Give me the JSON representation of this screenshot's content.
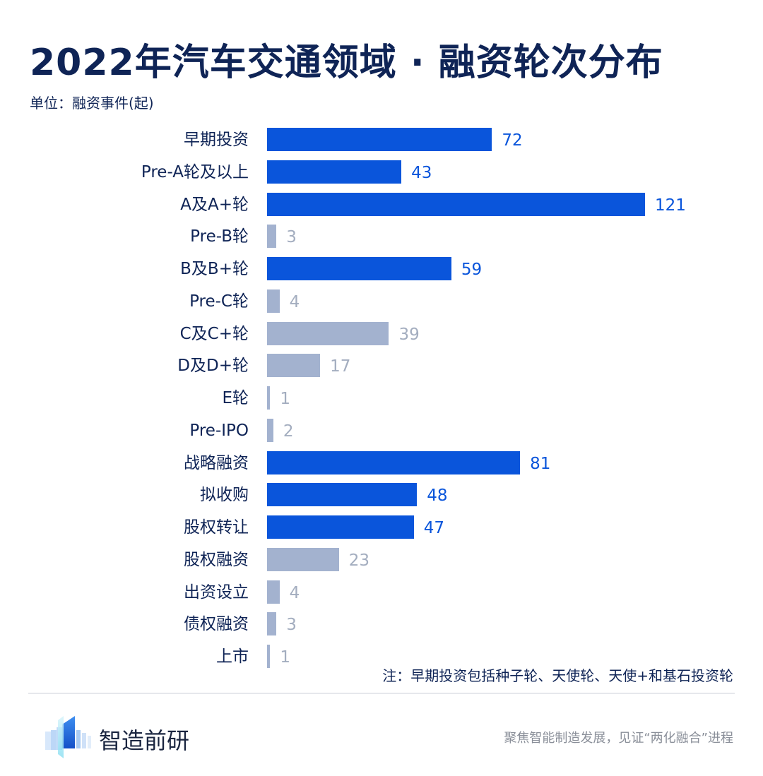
{
  "header": {
    "title": "2022年汽车交通领域 · 融资轮次分布",
    "unit": "单位：融资事件(起)"
  },
  "colors": {
    "highlight": "#0a55db",
    "muted": "#a3b2cf",
    "highlight_label": "#0a55db",
    "muted_label": "#a3adbf",
    "title": "#0f2456"
  },
  "chart_data": {
    "type": "bar",
    "orientation": "horizontal",
    "title": "2022年汽车交通领域 · 融资轮次分布",
    "xlabel": "",
    "ylabel": "",
    "unit": "融资事件(起)",
    "xlim": [
      0,
      121
    ],
    "grid": false,
    "legend": null,
    "categories": [
      "早期投资",
      "Pre-A轮及以上",
      "A及A+轮",
      "Pre-B轮",
      "B及B+轮",
      "Pre-C轮",
      "C及C+轮",
      "D及D+轮",
      "E轮",
      "Pre-IPO",
      "战略融资",
      "拟收购",
      "股权转让",
      "股权融资",
      "出资设立",
      "债权融资",
      "上市"
    ],
    "values": [
      72,
      43,
      121,
      3,
      59,
      4,
      39,
      17,
      1,
      2,
      81,
      48,
      47,
      23,
      4,
      3,
      1
    ],
    "highlighted": [
      true,
      true,
      true,
      false,
      true,
      false,
      false,
      false,
      false,
      false,
      true,
      true,
      true,
      false,
      false,
      false,
      false
    ],
    "annotation": "注：早期投资包括种子轮、天使轮、天使+和基石投资轮"
  },
  "rows": [
    {
      "label": "早期投资",
      "value": "72"
    },
    {
      "label": "Pre-A轮及以上",
      "value": "43"
    },
    {
      "label": "A及A+轮",
      "value": "121"
    },
    {
      "label": "Pre-B轮",
      "value": "3"
    },
    {
      "label": "B及B+轮",
      "value": "59"
    },
    {
      "label": "Pre-C轮",
      "value": "4"
    },
    {
      "label": "C及C+轮",
      "value": "39"
    },
    {
      "label": "D及D+轮",
      "value": "17"
    },
    {
      "label": "E轮",
      "value": "1"
    },
    {
      "label": "Pre-IPO",
      "value": "2"
    },
    {
      "label": "战略融资",
      "value": "81"
    },
    {
      "label": "拟收购",
      "value": "48"
    },
    {
      "label": "股权转让",
      "value": "47"
    },
    {
      "label": "股权融资",
      "value": "23"
    },
    {
      "label": "出资设立",
      "value": "4"
    },
    {
      "label": "债权融资",
      "value": "3"
    },
    {
      "label": "上市",
      "value": "1"
    }
  ],
  "footer": {
    "note": "注：早期投资包括种子轮、天使轮、天使+和基石投资轮",
    "brand": "智造前研",
    "slogan": "聚焦智能制造发展，见证“两化融合”进程",
    "logo_icon": "bar-columns-logo-icon"
  }
}
